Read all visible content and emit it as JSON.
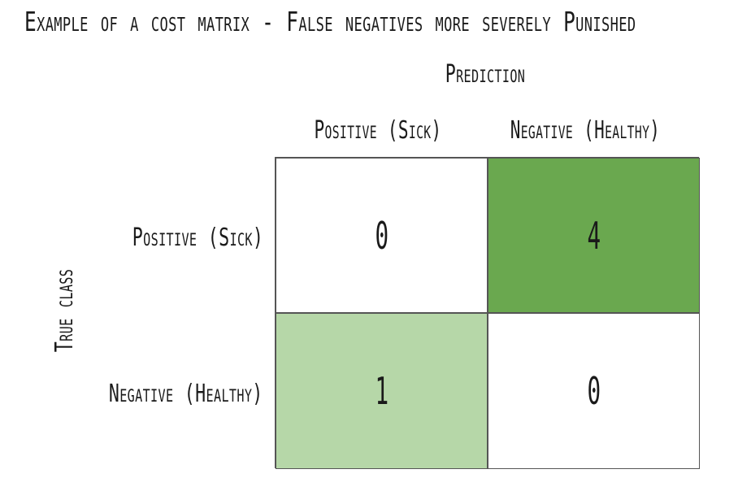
{
  "title": "Example of a cost matrix - False negatives more severely Punished",
  "prediction_label": "Prediction",
  "true_class_label": "True class",
  "columns": [
    "Positive (Sick)",
    "Negative (Healthy)"
  ],
  "rows": [
    "Positive (Sick)",
    "Negative (Healthy)"
  ],
  "matrix": [
    [
      {
        "value": "0",
        "color": "#ffffff"
      },
      {
        "value": "4",
        "color": "#6aa84f"
      }
    ],
    [
      {
        "value": "1",
        "color": "#b6d7a8"
      },
      {
        "value": "0",
        "color": "#ffffff"
      }
    ]
  ]
}
